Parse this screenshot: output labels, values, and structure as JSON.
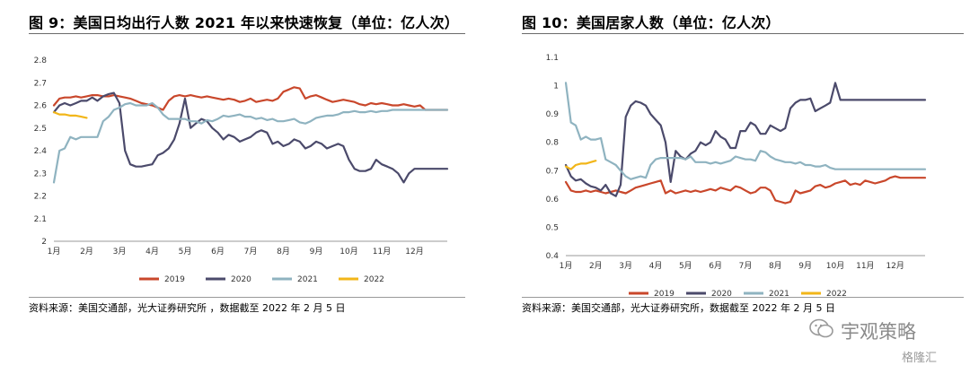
{
  "colors": {
    "2019": "#c9472b",
    "2020": "#4b4a6b",
    "2021": "#8fb3c0",
    "2022": "#f2b619"
  },
  "left": {
    "title": "图 9：美国日均出行人数 2021 年以来快速恢复（单位：亿人次）",
    "source": "资料来源：美国交通部，光大证券研究所 ，数据截至 2022 年 2 月 5 日"
  },
  "right": {
    "title": "图 10：美国居家人数（单位：亿人次）",
    "source": "资料来源：美国交通部，光大证券研究所，数据截至 2022 年 2 月 5 日"
  },
  "watermark": {
    "brand": "宇观策略",
    "site": "格隆汇"
  },
  "chart_data": [
    {
      "type": "line",
      "title": "图 9：美国日均出行人数 2021 年以来快速恢复（单位：亿人次）",
      "ylabel": "亿人次",
      "ylim": [
        2,
        2.8
      ],
      "yticks": [
        "2.8",
        "2.7",
        "2.6",
        "2.5",
        "2.4",
        "2.3",
        "2.2",
        "2.1",
        "2"
      ],
      "categories": [
        "1月",
        "2月",
        "3月",
        "4月",
        "5月",
        "6月",
        "7月",
        "8月",
        "9月",
        "10月",
        "11月",
        "12月"
      ],
      "grid": false,
      "legend": "bottom",
      "series": [
        {
          "name": "2019",
          "x": [
            1,
            1.17,
            1.33,
            1.5,
            1.67,
            1.83,
            2,
            2.17,
            2.33,
            2.5,
            2.67,
            2.83,
            3,
            3.17,
            3.33,
            3.5,
            3.67,
            3.83,
            4,
            4.17,
            4.33,
            4.5,
            4.67,
            4.83,
            5,
            5.17,
            5.33,
            5.5,
            5.67,
            5.83,
            6,
            6.17,
            6.33,
            6.5,
            6.67,
            6.83,
            7,
            7.17,
            7.33,
            7.5,
            7.67,
            7.83,
            8,
            8.17,
            8.33,
            8.5,
            8.67,
            8.83,
            9,
            9.17,
            9.33,
            9.5,
            9.67,
            9.83,
            10,
            10.17,
            10.33,
            10.5,
            10.67,
            10.83,
            11,
            11.17,
            11.33,
            11.5,
            11.67,
            11.83,
            12,
            12.17,
            12.33,
            12.5,
            12.67,
            12.83,
            13
          ],
          "values": [
            2.6,
            2.63,
            2.635,
            2.635,
            2.64,
            2.635,
            2.64,
            2.645,
            2.645,
            2.64,
            2.64,
            2.645,
            2.64,
            2.635,
            2.63,
            2.62,
            2.61,
            2.605,
            2.6,
            2.59,
            2.58,
            2.62,
            2.64,
            2.645,
            2.64,
            2.645,
            2.64,
            2.635,
            2.64,
            2.635,
            2.63,
            2.625,
            2.63,
            2.625,
            2.615,
            2.62,
            2.63,
            2.615,
            2.62,
            2.625,
            2.62,
            2.63,
            2.66,
            2.67,
            2.68,
            2.675,
            2.63,
            2.64,
            2.645,
            2.635,
            2.625,
            2.615,
            2.62,
            2.625,
            2.62,
            2.615,
            2.605,
            2.6,
            2.61,
            2.605,
            2.61,
            2.605,
            2.6,
            2.6,
            2.605,
            2.6,
            2.595,
            2.6,
            2.58,
            2.58,
            2.58,
            2.58,
            2.58
          ]
        },
        {
          "name": "2020",
          "x": [
            1,
            1.17,
            1.33,
            1.5,
            1.67,
            1.83,
            2,
            2.17,
            2.33,
            2.5,
            2.67,
            2.83,
            3,
            3.17,
            3.33,
            3.5,
            3.67,
            3.83,
            4,
            4.17,
            4.33,
            4.5,
            4.67,
            4.83,
            5,
            5.17,
            5.33,
            5.5,
            5.67,
            5.83,
            6,
            6.17,
            6.33,
            6.5,
            6.67,
            6.83,
            7,
            7.17,
            7.33,
            7.5,
            7.67,
            7.83,
            8,
            8.17,
            8.33,
            8.5,
            8.67,
            8.83,
            9,
            9.17,
            9.33,
            9.5,
            9.67,
            9.83,
            10,
            10.17,
            10.33,
            10.5,
            10.67,
            10.83,
            11,
            11.17,
            11.33,
            11.5,
            11.67,
            11.83,
            12,
            12.17,
            12.33,
            12.5,
            12.67,
            12.83,
            13
          ],
          "values": [
            2.57,
            2.6,
            2.61,
            2.6,
            2.61,
            2.62,
            2.62,
            2.635,
            2.62,
            2.64,
            2.65,
            2.655,
            2.61,
            2.4,
            2.34,
            2.33,
            2.33,
            2.335,
            2.34,
            2.38,
            2.39,
            2.41,
            2.45,
            2.52,
            2.63,
            2.5,
            2.52,
            2.54,
            2.53,
            2.5,
            2.48,
            2.45,
            2.47,
            2.46,
            2.44,
            2.45,
            2.46,
            2.48,
            2.49,
            2.48,
            2.43,
            2.44,
            2.42,
            2.43,
            2.45,
            2.44,
            2.41,
            2.42,
            2.44,
            2.43,
            2.41,
            2.42,
            2.43,
            2.42,
            2.36,
            2.32,
            2.31,
            2.31,
            2.32,
            2.36,
            2.34,
            2.33,
            2.32,
            2.3,
            2.26,
            2.3,
            2.32,
            2.32,
            2.32,
            2.32,
            2.32,
            2.32,
            2.32
          ]
        },
        {
          "name": "2021",
          "x": [
            1,
            1.17,
            1.33,
            1.5,
            1.67,
            1.83,
            2,
            2.17,
            2.33,
            2.5,
            2.67,
            2.83,
            3,
            3.17,
            3.33,
            3.5,
            3.67,
            3.83,
            4,
            4.17,
            4.33,
            4.5,
            4.67,
            4.83,
            5,
            5.17,
            5.33,
            5.5,
            5.67,
            5.83,
            6,
            6.17,
            6.33,
            6.5,
            6.67,
            6.83,
            7,
            7.17,
            7.33,
            7.5,
            7.67,
            7.83,
            8,
            8.17,
            8.33,
            8.5,
            8.67,
            8.83,
            9,
            9.17,
            9.33,
            9.5,
            9.67,
            9.83,
            10,
            10.17,
            10.33,
            10.5,
            10.67,
            10.83,
            11,
            11.17,
            11.33,
            11.5,
            11.67,
            11.83,
            12,
            12.17,
            12.33,
            12.5,
            12.67,
            12.83,
            13
          ],
          "values": [
            2.26,
            2.4,
            2.41,
            2.46,
            2.45,
            2.46,
            2.46,
            2.46,
            2.46,
            2.53,
            2.55,
            2.58,
            2.59,
            2.605,
            2.61,
            2.6,
            2.6,
            2.6,
            2.61,
            2.59,
            2.56,
            2.54,
            2.54,
            2.54,
            2.54,
            2.53,
            2.53,
            2.52,
            2.535,
            2.53,
            2.54,
            2.555,
            2.55,
            2.555,
            2.56,
            2.55,
            2.55,
            2.54,
            2.545,
            2.535,
            2.54,
            2.53,
            2.53,
            2.535,
            2.54,
            2.525,
            2.52,
            2.53,
            2.545,
            2.55,
            2.555,
            2.555,
            2.56,
            2.57,
            2.57,
            2.575,
            2.57,
            2.57,
            2.575,
            2.57,
            2.575,
            2.575,
            2.58,
            2.58,
            2.58,
            2.58,
            2.58,
            2.58,
            2.58,
            2.58,
            2.58,
            2.58,
            2.58
          ]
        },
        {
          "name": "2022",
          "x": [
            1,
            1.17,
            1.33,
            1.5,
            1.67,
            1.83,
            2
          ],
          "values": [
            2.57,
            2.56,
            2.56,
            2.555,
            2.555,
            2.55,
            2.545
          ]
        }
      ]
    },
    {
      "type": "line",
      "title": "图 10：美国居家人数（单位：亿人次）",
      "ylabel": "亿人次",
      "ylim": [
        0.4,
        1.1
      ],
      "yticks": [
        "1.1",
        "1",
        "0.9",
        "0.8",
        "0.7",
        "0.6",
        "0.5",
        "0.4"
      ],
      "categories": [
        "1月",
        "2月",
        "3月",
        "4月",
        "5月",
        "6月",
        "7月",
        "8月",
        "9月",
        "10月",
        "11月",
        "12月"
      ],
      "grid": false,
      "legend": "bottom",
      "series": [
        {
          "name": "2019",
          "x": [
            1,
            1.17,
            1.33,
            1.5,
            1.67,
            1.83,
            2,
            2.17,
            2.33,
            2.5,
            2.67,
            2.83,
            3,
            3.17,
            3.33,
            3.5,
            3.67,
            3.83,
            4,
            4.17,
            4.33,
            4.5,
            4.67,
            4.83,
            5,
            5.17,
            5.33,
            5.5,
            5.67,
            5.83,
            6,
            6.17,
            6.33,
            6.5,
            6.67,
            6.83,
            7,
            7.17,
            7.33,
            7.5,
            7.67,
            7.83,
            8,
            8.17,
            8.33,
            8.5,
            8.67,
            8.83,
            9,
            9.17,
            9.33,
            9.5,
            9.67,
            9.83,
            10,
            10.17,
            10.33,
            10.5,
            10.67,
            10.83,
            11,
            11.17,
            11.33,
            11.5,
            11.67,
            11.83,
            12,
            12.17,
            12.33,
            12.5,
            12.67,
            12.83,
            13
          ],
          "values": [
            0.66,
            0.63,
            0.625,
            0.625,
            0.63,
            0.625,
            0.63,
            0.625,
            0.62,
            0.625,
            0.63,
            0.625,
            0.62,
            0.63,
            0.64,
            0.645,
            0.65,
            0.655,
            0.66,
            0.665,
            0.62,
            0.63,
            0.62,
            0.625,
            0.63,
            0.625,
            0.63,
            0.625,
            0.63,
            0.635,
            0.63,
            0.64,
            0.635,
            0.63,
            0.645,
            0.64,
            0.63,
            0.62,
            0.625,
            0.64,
            0.64,
            0.63,
            0.595,
            0.59,
            0.585,
            0.59,
            0.63,
            0.62,
            0.625,
            0.63,
            0.645,
            0.65,
            0.64,
            0.645,
            0.655,
            0.66,
            0.665,
            0.65,
            0.655,
            0.65,
            0.665,
            0.66,
            0.655,
            0.66,
            0.665,
            0.675,
            0.68,
            0.675,
            0.675,
            0.675,
            0.675,
            0.675,
            0.675
          ]
        },
        {
          "name": "2020",
          "x": [
            1,
            1.17,
            1.33,
            1.5,
            1.67,
            1.83,
            2,
            2.17,
            2.33,
            2.5,
            2.67,
            2.83,
            3,
            3.17,
            3.33,
            3.5,
            3.67,
            3.83,
            4,
            4.17,
            4.33,
            4.5,
            4.67,
            4.83,
            5,
            5.17,
            5.33,
            5.5,
            5.67,
            5.83,
            6,
            6.17,
            6.33,
            6.5,
            6.67,
            6.83,
            7,
            7.17,
            7.33,
            7.5,
            7.67,
            7.83,
            8,
            8.17,
            8.33,
            8.5,
            8.67,
            8.83,
            9,
            9.17,
            9.33,
            9.5,
            9.67,
            9.83,
            10,
            10.17,
            10.33,
            10.5,
            10.67,
            10.83,
            11,
            11.17,
            11.33,
            11.5,
            11.67,
            11.83,
            12,
            12.17,
            12.33,
            12.5,
            12.67,
            12.83,
            13
          ],
          "values": [
            0.72,
            0.68,
            0.665,
            0.67,
            0.655,
            0.645,
            0.64,
            0.63,
            0.65,
            0.62,
            0.61,
            0.65,
            0.89,
            0.93,
            0.945,
            0.94,
            0.93,
            0.9,
            0.88,
            0.86,
            0.8,
            0.66,
            0.77,
            0.75,
            0.74,
            0.76,
            0.77,
            0.8,
            0.79,
            0.8,
            0.84,
            0.82,
            0.81,
            0.78,
            0.78,
            0.84,
            0.84,
            0.87,
            0.86,
            0.83,
            0.83,
            0.86,
            0.85,
            0.84,
            0.85,
            0.92,
            0.94,
            0.95,
            0.95,
            0.955,
            0.91,
            0.92,
            0.93,
            0.94,
            1.01,
            0.95,
            0.95,
            0.95,
            0.95,
            0.95,
            0.95,
            0.95,
            0.95,
            0.95,
            0.95,
            0.95,
            0.95,
            0.95,
            0.95,
            0.95,
            0.95,
            0.95,
            0.95
          ]
        },
        {
          "name": "2021",
          "x": [
            1,
            1.17,
            1.33,
            1.5,
            1.67,
            1.83,
            2,
            2.17,
            2.33,
            2.5,
            2.67,
            2.83,
            3,
            3.17,
            3.33,
            3.5,
            3.67,
            3.83,
            4,
            4.17,
            4.33,
            4.5,
            4.67,
            4.83,
            5,
            5.17,
            5.33,
            5.5,
            5.67,
            5.83,
            6,
            6.17,
            6.33,
            6.5,
            6.67,
            6.83,
            7,
            7.17,
            7.33,
            7.5,
            7.67,
            7.83,
            8,
            8.17,
            8.33,
            8.5,
            8.67,
            8.83,
            9,
            9.17,
            9.33,
            9.5,
            9.67,
            9.83,
            10,
            10.17,
            10.33,
            10.5,
            10.67,
            10.83,
            11,
            11.17,
            11.33,
            11.5,
            11.67,
            11.83,
            12,
            12.17,
            12.33,
            12.5,
            12.67,
            12.83,
            13
          ],
          "values": [
            1.01,
            0.87,
            0.86,
            0.81,
            0.82,
            0.81,
            0.81,
            0.815,
            0.74,
            0.73,
            0.72,
            0.7,
            0.68,
            0.67,
            0.675,
            0.68,
            0.675,
            0.72,
            0.74,
            0.745,
            0.745,
            0.745,
            0.745,
            0.745,
            0.74,
            0.75,
            0.73,
            0.73,
            0.73,
            0.725,
            0.73,
            0.725,
            0.73,
            0.735,
            0.75,
            0.745,
            0.74,
            0.74,
            0.735,
            0.77,
            0.765,
            0.75,
            0.74,
            0.735,
            0.73,
            0.73,
            0.725,
            0.73,
            0.72,
            0.72,
            0.715,
            0.715,
            0.72,
            0.71,
            0.705,
            0.705,
            0.705,
            0.705,
            0.705,
            0.705,
            0.705,
            0.705,
            0.705,
            0.705,
            0.705,
            0.705,
            0.705,
            0.705,
            0.705,
            0.705,
            0.705,
            0.705,
            0.705
          ]
        },
        {
          "name": "2022",
          "x": [
            1,
            1.17,
            1.33,
            1.5,
            1.67,
            1.83,
            2
          ],
          "values": [
            0.715,
            0.705,
            0.72,
            0.725,
            0.725,
            0.73,
            0.735
          ]
        }
      ]
    }
  ]
}
